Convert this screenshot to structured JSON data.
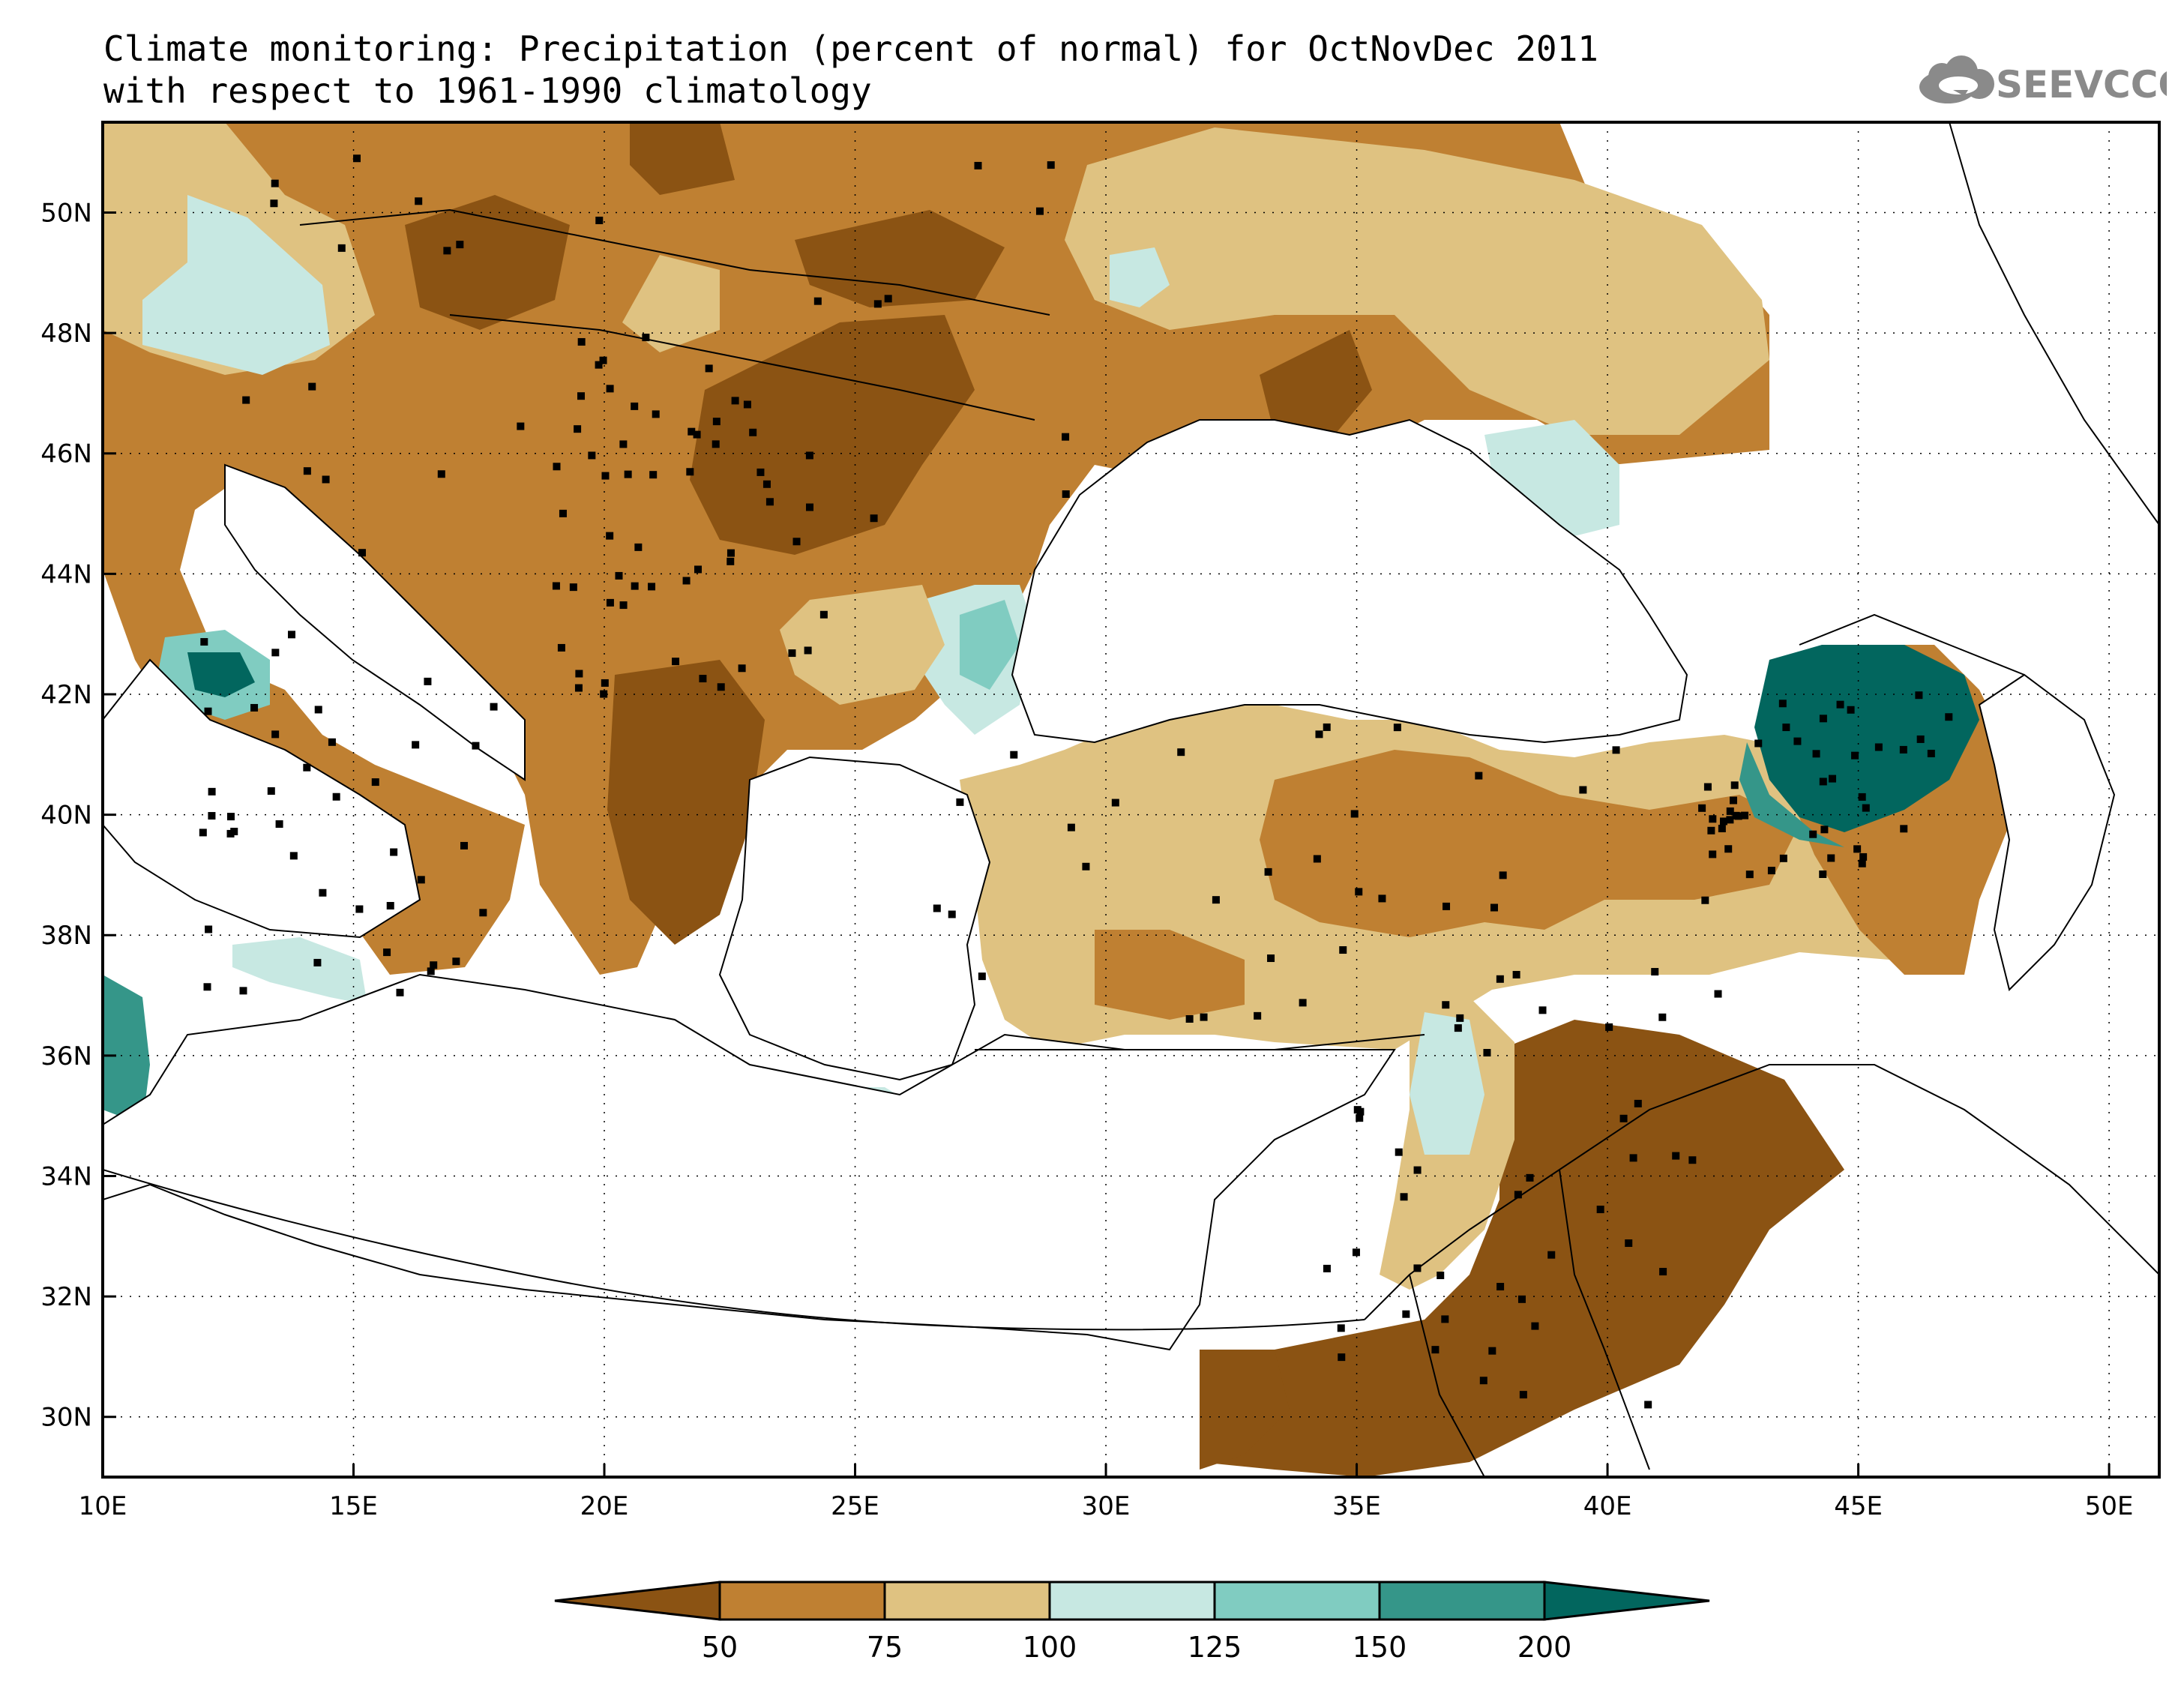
{
  "header": {
    "title_line1": "Climate monitoring: Precipitation (percent of normal) for OctNovDec 2011",
    "title_line2": "with respect to 1961-1990 climatology",
    "logo_text": "SEEVCCC",
    "logo_icon": "cloud-icon"
  },
  "map": {
    "lon_range": [
      10,
      51
    ],
    "lat_range": [
      29,
      51.5
    ],
    "x_ticks": [
      "10E",
      "15E",
      "20E",
      "25E",
      "30E",
      "35E",
      "40E",
      "45E",
      "50E"
    ],
    "y_ticks": [
      "30N",
      "32N",
      "34N",
      "36N",
      "38N",
      "40N",
      "42N",
      "44N",
      "46N",
      "48N",
      "50N"
    ],
    "grid": "dotted"
  },
  "colorbar": {
    "levels": [
      "50",
      "75",
      "100",
      "125",
      "150",
      "200"
    ],
    "colors": [
      "#8b5313",
      "#bf8032",
      "#dfc281",
      "#c7e8e2",
      "#80ccc1",
      "#359689",
      "#02665e"
    ],
    "extend": "both"
  },
  "colors": {
    "land_outline": "#000000",
    "station_marker": "#000000"
  }
}
